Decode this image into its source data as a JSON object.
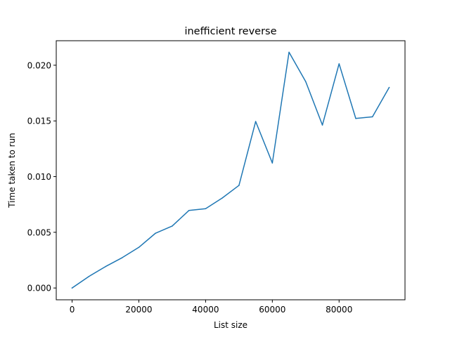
{
  "chart_data": {
    "type": "line",
    "title": "inefficient reverse",
    "xlabel": "List size",
    "ylabel": "Time taken to run",
    "xlim": [
      -4750,
      99750
    ],
    "ylim": [
      -0.00106,
      0.0222
    ],
    "xticks": [
      0,
      20000,
      40000,
      60000,
      80000
    ],
    "xtick_labels": [
      "0",
      "20000",
      "40000",
      "60000",
      "80000"
    ],
    "yticks": [
      0.0,
      0.005,
      0.01,
      0.015,
      0.02
    ],
    "ytick_labels": [
      "0.000",
      "0.005",
      "0.010",
      "0.015",
      "0.020"
    ],
    "grid": false,
    "line_color": "#1f77b4",
    "series": [
      {
        "x": [
          0,
          5000,
          10000,
          15000,
          20000,
          25000,
          30000,
          35000,
          40000,
          45000,
          50000,
          55000,
          60000,
          65000,
          70000,
          75000,
          80000,
          85000,
          90000,
          95000
        ],
        "y": [
          0.0,
          0.00103,
          0.00192,
          0.00272,
          0.00365,
          0.00492,
          0.00556,
          0.00696,
          0.00712,
          0.00808,
          0.00921,
          0.01495,
          0.01122,
          0.02117,
          0.01853,
          0.01463,
          0.02013,
          0.01522,
          0.01537,
          0.018
        ]
      }
    ]
  }
}
